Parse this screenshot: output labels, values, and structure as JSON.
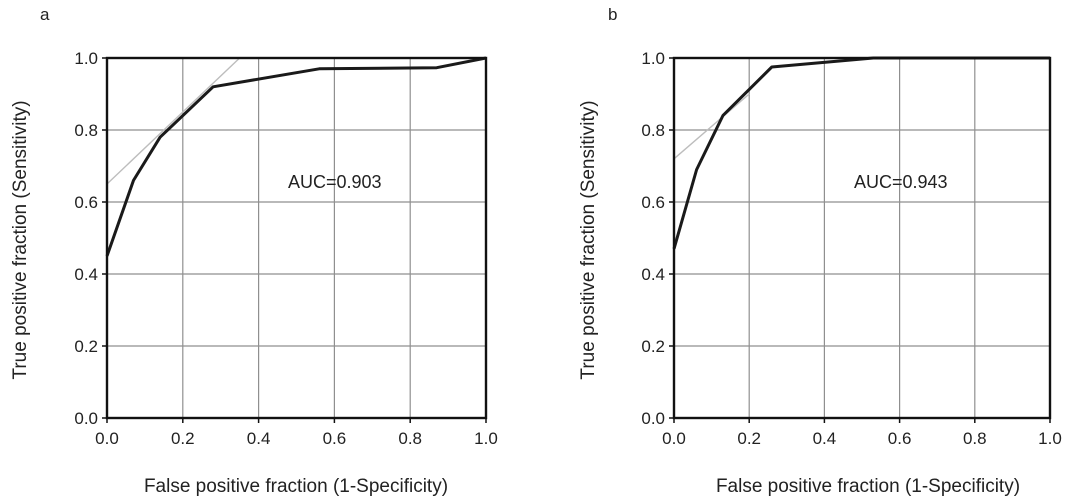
{
  "chart_data": [
    {
      "type": "line",
      "panel_label": "a",
      "xlabel": "False positive fraction (1-Specificity)",
      "ylabel": "True positive fraction (Sensitivity)",
      "xlim": [
        0,
        1
      ],
      "ylim": [
        0,
        1
      ],
      "x_ticks": [
        "0.0",
        "0.2",
        "0.4",
        "0.6",
        "0.8",
        "1.0"
      ],
      "y_ticks": [
        "0.0",
        "0.2",
        "0.4",
        "0.6",
        "0.8",
        "1.0"
      ],
      "grid": true,
      "annotation": "AUC=0.903",
      "series": [
        {
          "x": [
            0.0,
            0.07,
            0.14,
            0.28,
            0.56,
            0.87,
            1.0
          ],
          "y": [
            0.45,
            0.66,
            0.78,
            0.92,
            0.97,
            0.973,
            1.0
          ]
        }
      ],
      "reference_line": {
        "x": [
          0.0,
          0.35
        ],
        "y": [
          0.65,
          1.0
        ]
      }
    },
    {
      "type": "line",
      "panel_label": "b",
      "xlabel": "False positive fraction (1-Specificity)",
      "ylabel": "True positive fraction (Sensitivity)",
      "xlim": [
        0,
        1
      ],
      "ylim": [
        0,
        1
      ],
      "x_ticks": [
        "0.0",
        "0.2",
        "0.4",
        "0.6",
        "0.8",
        "1.0"
      ],
      "y_ticks": [
        "0.0",
        "0.2",
        "0.4",
        "0.6",
        "0.8",
        "1.0"
      ],
      "grid": true,
      "annotation": "AUC=0.943",
      "series": [
        {
          "x": [
            0.0,
            0.06,
            0.13,
            0.26,
            0.53,
            1.0
          ],
          "y": [
            0.47,
            0.69,
            0.84,
            0.975,
            1.0,
            1.0
          ]
        }
      ],
      "reference_line": {
        "x": [
          0.0,
          0.2
        ],
        "y": [
          0.72,
          0.9
        ]
      }
    }
  ]
}
